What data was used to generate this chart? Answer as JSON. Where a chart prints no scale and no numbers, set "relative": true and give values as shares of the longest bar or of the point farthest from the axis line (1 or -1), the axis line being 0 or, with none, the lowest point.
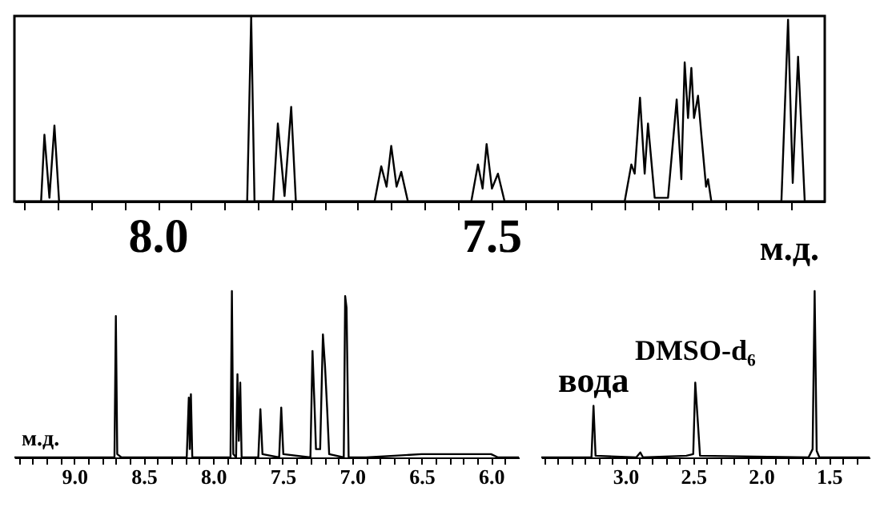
{
  "chart_data": [
    {
      "type": "line",
      "relative": true,
      "xlabel": "м.д.",
      "xlim": [
        8.215,
        7.0
      ],
      "xticks": [
        {
          "value": 8.2,
          "label": null
        },
        {
          "value": 8.15,
          "label": null
        },
        {
          "value": 8.1,
          "label": null
        },
        {
          "value": 8.05,
          "label": null
        },
        {
          "value": 8.0,
          "label": "8.0"
        },
        {
          "value": 7.95,
          "label": null
        },
        {
          "value": 7.9,
          "label": null
        },
        {
          "value": 7.85,
          "label": null
        },
        {
          "value": 7.8,
          "label": null
        },
        {
          "value": 7.75,
          "label": null
        },
        {
          "value": 7.7,
          "label": null
        },
        {
          "value": 7.65,
          "label": null
        },
        {
          "value": 7.6,
          "label": null
        },
        {
          "value": 7.55,
          "label": null
        },
        {
          "value": 7.5,
          "label": "7.5"
        },
        {
          "value": 7.45,
          "label": null
        },
        {
          "value": 7.4,
          "label": null
        },
        {
          "value": 7.35,
          "label": null
        },
        {
          "value": 7.3,
          "label": null
        },
        {
          "value": 7.25,
          "label": null
        },
        {
          "value": 7.2,
          "label": null
        },
        {
          "value": 7.15,
          "label": null
        },
        {
          "value": 7.1,
          "label": null
        },
        {
          "value": 7.05,
          "label": null
        }
      ],
      "x": [
        8.21,
        8.175,
        8.17,
        8.1625,
        8.155,
        8.148,
        7.866,
        7.86,
        7.855,
        7.827,
        7.82,
        7.81,
        7.8,
        7.793,
        7.675,
        7.665,
        7.657,
        7.65,
        7.642,
        7.635,
        7.625,
        7.53,
        7.52,
        7.513,
        7.507,
        7.499,
        7.49,
        7.48,
        7.3,
        7.29,
        7.285,
        7.277,
        7.27,
        7.265,
        7.255,
        7.235,
        7.222,
        7.215,
        7.21,
        7.205,
        7.2,
        7.196,
        7.19,
        7.185,
        7.178,
        7.175,
        7.17,
        7.065,
        7.055,
        7.048,
        7.04,
        7.03,
        7.0
      ],
      "series": [
        {
          "color": "#000000",
          "values": [
            0,
            0,
            0.36,
            0.02,
            0.41,
            0,
            0,
            1.0,
            0,
            0,
            0.42,
            0.03,
            0.51,
            0,
            0,
            0.19,
            0.08,
            0.3,
            0.08,
            0.16,
            0,
            0,
            0.2,
            0.07,
            0.31,
            0.07,
            0.15,
            0,
            0,
            0.2,
            0.15,
            0.56,
            0.15,
            0.42,
            0.02,
            0.02,
            0.55,
            0.12,
            0.75,
            0.45,
            0.72,
            0.45,
            0.57,
            0.36,
            0.08,
            0.12,
            0,
            0,
            0.98,
            0.1,
            0.78,
            0,
            0
          ]
        }
      ]
    },
    {
      "type": "line",
      "relative": true,
      "xlabel": "м.д.",
      "xlim": [
        9.43,
        5.8
      ],
      "xticks": [
        {
          "value": 9.4,
          "label": null
        },
        {
          "value": 9.3,
          "label": null
        },
        {
          "value": 9.2,
          "label": null
        },
        {
          "value": 9.1,
          "label": null
        },
        {
          "value": 9.0,
          "label": "9.0"
        },
        {
          "value": 8.9,
          "label": null
        },
        {
          "value": 8.8,
          "label": null
        },
        {
          "value": 8.7,
          "label": null
        },
        {
          "value": 8.6,
          "label": null
        },
        {
          "value": 8.5,
          "label": "8.5"
        },
        {
          "value": 8.4,
          "label": null
        },
        {
          "value": 8.3,
          "label": null
        },
        {
          "value": 8.2,
          "label": null
        },
        {
          "value": 8.1,
          "label": null
        },
        {
          "value": 8.0,
          "label": "8.0"
        },
        {
          "value": 7.9,
          "label": null
        },
        {
          "value": 7.8,
          "label": null
        },
        {
          "value": 7.7,
          "label": null
        },
        {
          "value": 7.6,
          "label": null
        },
        {
          "value": 7.5,
          "label": "7.5"
        },
        {
          "value": 7.4,
          "label": null
        },
        {
          "value": 7.3,
          "label": null
        },
        {
          "value": 7.2,
          "label": null
        },
        {
          "value": 7.1,
          "label": null
        },
        {
          "value": 7.0,
          "label": "7.0"
        },
        {
          "value": 6.9,
          "label": null
        },
        {
          "value": 6.8,
          "label": null
        },
        {
          "value": 6.7,
          "label": null
        },
        {
          "value": 6.6,
          "label": null
        },
        {
          "value": 6.5,
          "label": "6.5"
        },
        {
          "value": 6.4,
          "label": null
        },
        {
          "value": 6.3,
          "label": null
        },
        {
          "value": 6.2,
          "label": null
        },
        {
          "value": 6.1,
          "label": null
        },
        {
          "value": 6.0,
          "label": "6.0"
        },
        {
          "value": 5.9,
          "label": null
        }
      ],
      "x": [
        9.43,
        8.71,
        8.7,
        8.69,
        8.66,
        8.19,
        8.175,
        8.168,
        8.16,
        8.15,
        7.875,
        7.865,
        7.855,
        7.835,
        7.825,
        7.815,
        7.805,
        7.795,
        7.675,
        7.66,
        7.645,
        7.525,
        7.51,
        7.495,
        7.3,
        7.285,
        7.27,
        7.26,
        7.23,
        7.21,
        7.195,
        7.18,
        7.165,
        7.06,
        7.05,
        7.04,
        7.025,
        6.9,
        6.5,
        6.0,
        5.95,
        5.8
      ],
      "series": [
        {
          "color": "#000000",
          "values": [
            0,
            0,
            0.85,
            0.02,
            0,
            0,
            0.36,
            0.05,
            0.38,
            0,
            0,
            1.0,
            0.02,
            0,
            0.5,
            0.1,
            0.45,
            0,
            0,
            0.29,
            0.02,
            0,
            0.3,
            0.02,
            0,
            0.64,
            0.3,
            0.05,
            0.05,
            0.74,
            0.55,
            0.3,
            0.02,
            0,
            0.97,
            0.9,
            0,
            0,
            0.02,
            0.02,
            0,
            0
          ]
        }
      ]
    },
    {
      "type": "line",
      "relative": true,
      "xlim": [
        3.62,
        1.2
      ],
      "xticks": [
        {
          "value": 3.6,
          "label": null
        },
        {
          "value": 3.5,
          "label": null
        },
        {
          "value": 3.4,
          "label": null
        },
        {
          "value": 3.3,
          "label": null
        },
        {
          "value": 3.2,
          "label": null
        },
        {
          "value": 3.1,
          "label": null
        },
        {
          "value": 3.0,
          "label": "3.0"
        },
        {
          "value": 2.9,
          "label": null
        },
        {
          "value": 2.8,
          "label": null
        },
        {
          "value": 2.7,
          "label": null
        },
        {
          "value": 2.6,
          "label": null
        },
        {
          "value": 2.5,
          "label": "2.5"
        },
        {
          "value": 2.4,
          "label": null
        },
        {
          "value": 2.3,
          "label": null
        },
        {
          "value": 2.2,
          "label": null
        },
        {
          "value": 2.1,
          "label": null
        },
        {
          "value": 2.0,
          "label": "2.0"
        },
        {
          "value": 1.9,
          "label": null
        },
        {
          "value": 1.8,
          "label": null
        },
        {
          "value": 1.7,
          "label": null
        },
        {
          "value": 1.6,
          "label": null
        },
        {
          "value": 1.5,
          "label": "1.5"
        },
        {
          "value": 1.4,
          "label": null
        },
        {
          "value": 1.3,
          "label": null
        }
      ],
      "annotations": [
        {
          "text": "вода",
          "x": 3.235,
          "y": 0.31
        },
        {
          "text": "DMSO-d₆",
          "x": 2.485,
          "y": 0.45
        }
      ],
      "x": [
        3.62,
        3.25,
        3.235,
        3.22,
        2.92,
        2.89,
        2.87,
        2.55,
        2.5,
        2.485,
        2.465,
        2.45,
        1.65,
        1.62,
        1.605,
        1.59,
        1.57,
        1.2
      ],
      "series": [
        {
          "color": "#000000",
          "values": [
            0,
            0,
            0.31,
            0.01,
            0,
            0.03,
            0,
            0.01,
            0.02,
            0.45,
            0.2,
            0.01,
            0,
            0.05,
            1.0,
            0.04,
            0,
            0
          ]
        }
      ]
    }
  ]
}
